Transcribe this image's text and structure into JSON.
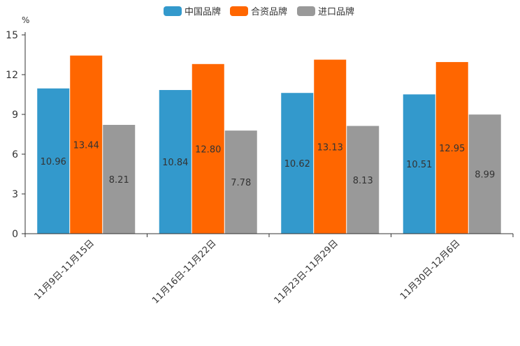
{
  "chart_data": {
    "type": "bar",
    "ylabel": "%",
    "ylim": [
      0,
      15
    ],
    "yticks": [
      "0",
      "3",
      "6",
      "9",
      "12",
      "15"
    ],
    "categories": [
      "11月9日-11月15日",
      "11月16日-11月22日",
      "11月23日-11月29日",
      "11月30日-12月6日"
    ],
    "series": [
      {
        "name": "中国品牌",
        "color": "#3399cc",
        "values": [
          10.96,
          10.84,
          10.62,
          10.51
        ],
        "labels": [
          "10.96",
          "10.84",
          "10.62",
          "10.51"
        ]
      },
      {
        "name": "合资品牌",
        "color": "#ff6600",
        "values": [
          13.44,
          12.8,
          13.13,
          12.95
        ],
        "labels": [
          "13.44",
          "12.80",
          "13.13",
          "12.95"
        ]
      },
      {
        "name": "进口品牌",
        "color": "#999999",
        "values": [
          8.21,
          7.78,
          8.13,
          8.99
        ],
        "labels": [
          "8.21",
          "7.78",
          "8.13",
          "8.99"
        ]
      }
    ],
    "legend_position": "top-center",
    "grid": false
  }
}
